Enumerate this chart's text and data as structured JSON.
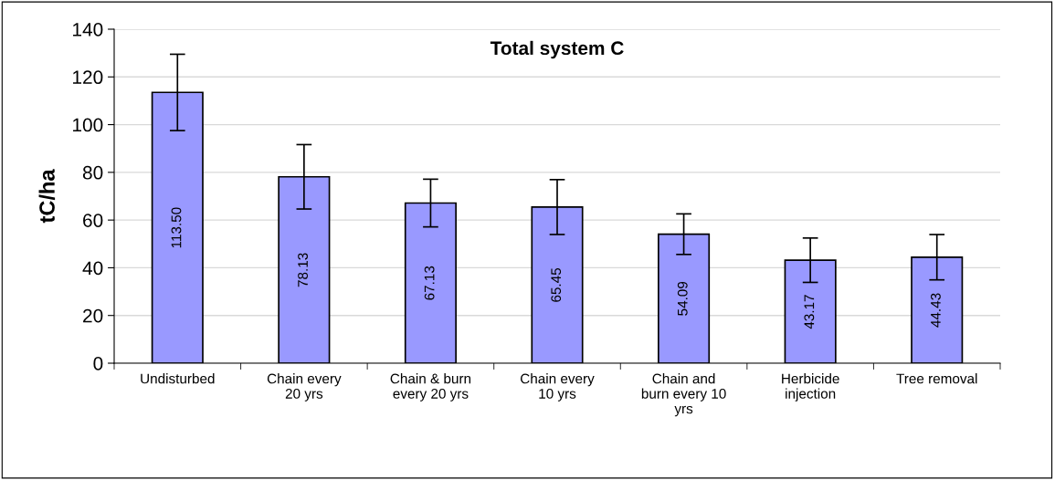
{
  "chart_data": {
    "type": "bar",
    "title": "Total system C",
    "ylabel": "tC/ha",
    "categories": [
      "Undisturbed",
      "Chain every\n20 yrs",
      "Chain & burn\nevery 20 yrs",
      "Chain every\n10 yrs",
      "Chain and\nburn every 10\nyrs",
      "Herbicide\ninjection",
      "Tree removal"
    ],
    "values": [
      113.5,
      78.13,
      67.13,
      65.45,
      54.09,
      43.17,
      44.43
    ],
    "errors": [
      16,
      13.5,
      10,
      11.5,
      8.5,
      9.3,
      9.5
    ],
    "color": "#9999ff",
    "ylim": [
      0,
      140
    ],
    "yticks": [
      0,
      20,
      40,
      60,
      80,
      100,
      120,
      140
    ],
    "value_labels": [
      "113.50",
      "78.13",
      "67.13",
      "65.45",
      "54.09",
      "43.17",
      "44.43"
    ],
    "grid": "y",
    "legend": false
  }
}
